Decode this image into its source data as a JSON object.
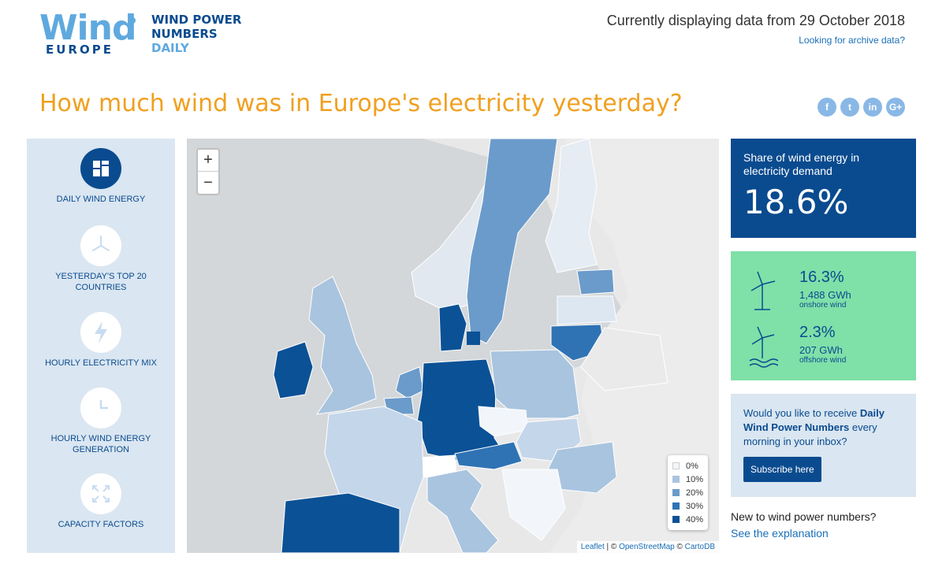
{
  "logo": {
    "wind": "Wind",
    "europe": "EUROPE",
    "line1": "WIND POWER",
    "line2": "NUMBERS",
    "line3": "DAILY"
  },
  "header": {
    "current": "Currently displaying data from 29 October 2018",
    "archive": "Looking for archive data?"
  },
  "headline": "How much wind was in Europe's electricity yesterday?",
  "social": [
    "f",
    "t",
    "in",
    "G+"
  ],
  "sidebar": {
    "items": [
      {
        "label": "DAILY WIND ENERGY",
        "icon": "dashboard-icon"
      },
      {
        "label": "YESTERDAY'S TOP 20 COUNTRIES",
        "icon": "turbine-icon"
      },
      {
        "label": "HOURLY ELECTRICITY MIX",
        "icon": "lightning-icon"
      },
      {
        "label": "HOURLY WIND ENERGY GENERATION",
        "icon": "clock-icon"
      },
      {
        "label": "CAPACITY FACTORS",
        "icon": "expand-icon"
      }
    ]
  },
  "map": {
    "zoom_in": "+",
    "zoom_out": "−",
    "legend": [
      {
        "label": "0%",
        "color": "#f2f6fb"
      },
      {
        "label": "10%",
        "color": "#a9c4df"
      },
      {
        "label": "20%",
        "color": "#6b9bca"
      },
      {
        "label": "30%",
        "color": "#2f73b4"
      },
      {
        "label": "40%",
        "color": "#0b5196"
      }
    ],
    "attribution": {
      "leaflet": "Leaflet",
      "sep1": " | © ",
      "osm": "OpenStreetMap",
      "sep2": " © ",
      "carto": "CartoDB"
    }
  },
  "share": {
    "label": "Share of wind energy in electricity demand",
    "value": "18.6%"
  },
  "onshore": {
    "pct": "16.3%",
    "gwh": "1,488 GWh",
    "caption": "onshore wind"
  },
  "offshore": {
    "pct": "2.3%",
    "gwh": "207 GWh",
    "caption": "offshore wind"
  },
  "subscribe": {
    "pre": "Would you like to receive ",
    "bold": "Daily Wind Power Numbers",
    "post": " every morning in your inbox?",
    "button": "Subscribe here"
  },
  "footer": {
    "new_text": "New to wind power numbers?",
    "explain": "See the explanation"
  },
  "colors": {
    "navy": "#0a4b8f",
    "orange": "#f0a020",
    "green": "#7fe0a8",
    "lightblue": "#dae6f1"
  }
}
